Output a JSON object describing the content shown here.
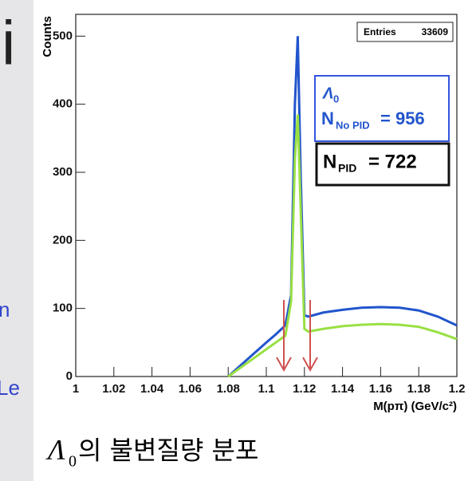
{
  "slide_fragments": [
    "i",
    "n",
    "Le"
  ],
  "chart_data": {
    "type": "line",
    "y_label": "Counts",
    "x_label": "M(pπ) (GeV/c²)",
    "stats": {
      "label": "Entries",
      "value": "33609"
    },
    "annotations": {
      "particle": "Λ",
      "particle_sub": "0",
      "no_pid_n": "N",
      "no_pid_sub": "No PID",
      "no_pid_value": "= 956",
      "pid_n": "N",
      "pid_sub": "PID",
      "pid_value": "= 722"
    },
    "caption": {
      "symbol": "Λ",
      "sub": "0",
      "text": "의 불변질량 분포"
    },
    "x": [
      1.08,
      1.09,
      1.1,
      1.105,
      1.11,
      1.113,
      1.115,
      1.1165,
      1.118,
      1.12,
      1.122,
      1.13,
      1.14,
      1.15,
      1.16,
      1.17,
      1.18,
      1.19,
      1.2
    ],
    "series": [
      {
        "name": "No PID",
        "color": "#2255cc",
        "values": [
          0,
          25,
          50,
          62,
          75,
          120,
          400,
          500,
          300,
          90,
          88,
          94,
          98,
          101,
          102,
          101,
          97,
          88,
          75
        ]
      },
      {
        "name": "PID",
        "color": "#99e044",
        "values": [
          0,
          20,
          40,
          50,
          60,
          110,
          320,
          385,
          250,
          70,
          66,
          70,
          74,
          76,
          77,
          76,
          73,
          65,
          55
        ]
      }
    ],
    "xlim": [
      1,
      1.2
    ],
    "ylim": [
      0,
      532
    ],
    "xticks": [
      1,
      1.02,
      1.04,
      1.06,
      1.08,
      1.1,
      1.12,
      1.14,
      1.16,
      1.18,
      1.2
    ],
    "yticks": [
      0,
      100,
      200,
      300,
      400,
      500
    ]
  }
}
